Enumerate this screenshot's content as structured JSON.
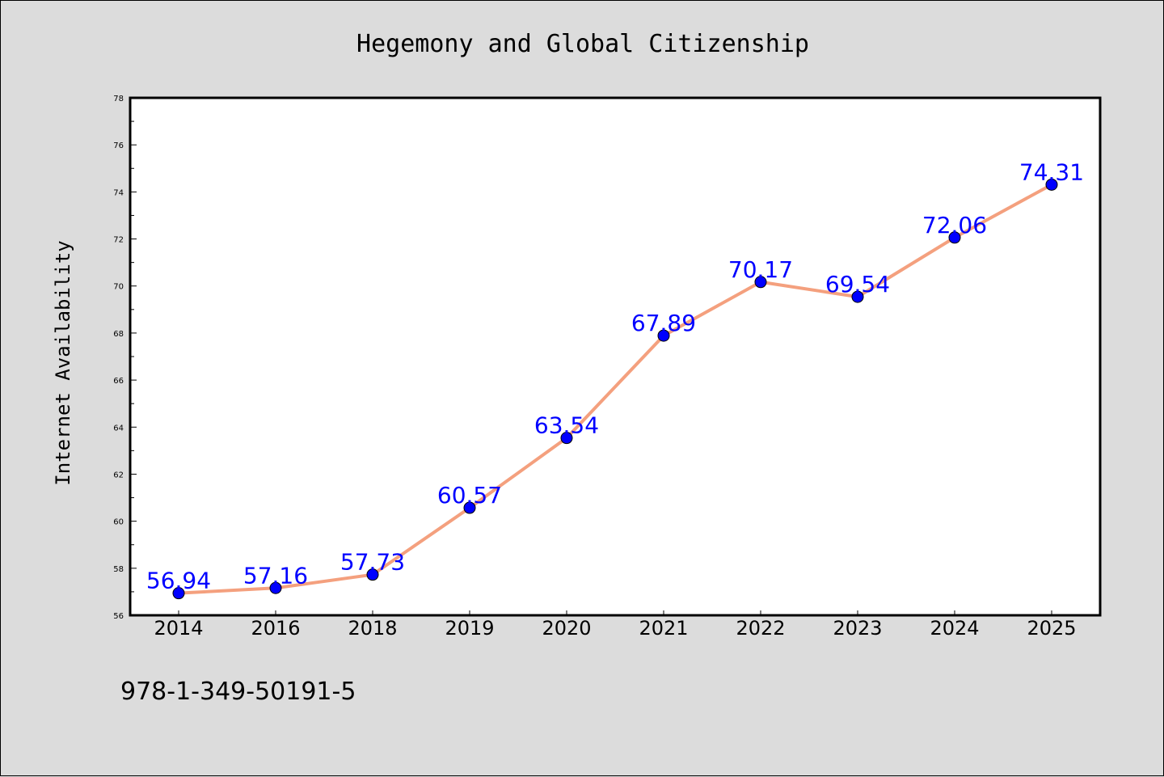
{
  "chart_data": {
    "type": "line",
    "title": "Hegemony and Global Citizenship",
    "xlabel": "",
    "ylabel": "Internet Availability",
    "categories": [
      "2014",
      "2016",
      "2018",
      "2019",
      "2020",
      "2021",
      "2022",
      "2023",
      "2024",
      "2025"
    ],
    "series": [
      {
        "values": [
          56.94,
          57.16,
          57.73,
          60.57,
          63.54,
          67.89,
          70.17,
          69.54,
          72.06,
          74.31
        ],
        "labels": [
          "56.94",
          "57.16",
          "57.73",
          "60.57",
          "63.54",
          "67.89",
          "70.17",
          "69.54",
          "72.06",
          "74.31"
        ]
      }
    ],
    "ylim": [
      56,
      78
    ],
    "yticks": [
      56,
      58,
      60,
      62,
      64,
      66,
      68,
      70,
      72,
      74,
      76,
      78
    ],
    "ytick_labels": [
      "56",
      "58",
      "60",
      "62",
      "64",
      "66",
      "68",
      "70",
      "72",
      "74",
      "76",
      "78"
    ],
    "grid": false,
    "colors": {
      "line": "#f4a07e",
      "marker": "#0000ff",
      "label": "#0000ff",
      "background": "#dcdcdc",
      "plot_background": "#ffffff"
    }
  },
  "footer": {
    "text": "978-1-349-50191-5"
  }
}
